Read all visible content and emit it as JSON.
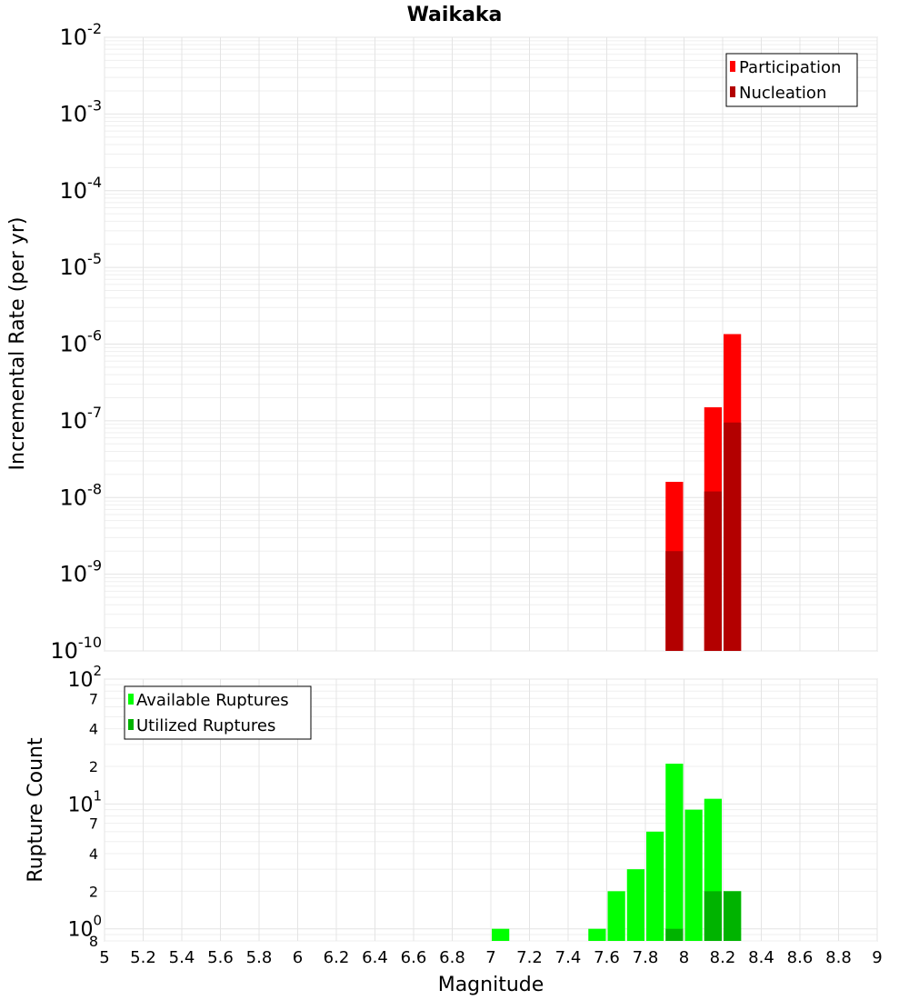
{
  "chart_data": {
    "title": "Waikaka",
    "xlabel": "Magnitude",
    "xlim": [
      5,
      9
    ],
    "x_ticks": [
      "5",
      "5.2",
      "5.4",
      "5.6",
      "5.8",
      "6",
      "6.2",
      "6.4",
      "6.6",
      "6.8",
      "7",
      "7.2",
      "7.4",
      "7.6",
      "7.8",
      "8",
      "8.2",
      "8.4",
      "8.6",
      "8.8",
      "9"
    ],
    "panels": [
      {
        "type": "bar",
        "scale": "log",
        "ylabel": "Incremental Rate (per yr)",
        "ylim": [
          1e-10,
          0.01
        ],
        "y_ticks": [
          {
            "value": 1e-10,
            "base": "10",
            "exp": "-10"
          },
          {
            "value": 1e-09,
            "base": "10",
            "exp": "-9"
          },
          {
            "value": 1e-08,
            "base": "10",
            "exp": "-8"
          },
          {
            "value": 1e-07,
            "base": "10",
            "exp": "-7"
          },
          {
            "value": 1e-06,
            "base": "10",
            "exp": "-6"
          },
          {
            "value": 1e-05,
            "base": "10",
            "exp": "-5"
          },
          {
            "value": 0.0001,
            "base": "10",
            "exp": "-4"
          },
          {
            "value": 0.001,
            "base": "10",
            "exp": "-3"
          },
          {
            "value": 0.01,
            "base": "10",
            "exp": "-2"
          }
        ],
        "minor_tick_labels": [],
        "legend_position": "top-right",
        "series": [
          {
            "name": "Participation",
            "color": "#ff0000",
            "points": [
              {
                "x": 7.95,
                "y": 1.6e-08
              },
              {
                "x": 8.15,
                "y": 1.5e-07
              },
              {
                "x": 8.25,
                "y": 1.35e-06
              }
            ]
          },
          {
            "name": "Nucleation",
            "color": "#b30000",
            "points": [
              {
                "x": 7.95,
                "y": 2e-09
              },
              {
                "x": 8.15,
                "y": 1.2e-08
              },
              {
                "x": 8.25,
                "y": 9.5e-08
              }
            ]
          }
        ]
      },
      {
        "type": "bar",
        "scale": "log",
        "ylabel": "Rupture Count",
        "ylim": [
          0.8,
          100
        ],
        "y_ticks": [
          {
            "value": 1,
            "base": "10",
            "exp": "0"
          },
          {
            "value": 10,
            "base": "10",
            "exp": "1"
          },
          {
            "value": 100,
            "base": "10",
            "exp": "2"
          }
        ],
        "minor_tick_labels": [
          {
            "value": 0.8,
            "label": "8"
          },
          {
            "value": 2,
            "label": "2"
          },
          {
            "value": 4,
            "label": "4"
          },
          {
            "value": 7,
            "label": "7"
          },
          {
            "value": 20,
            "label": "2"
          },
          {
            "value": 40,
            "label": "4"
          },
          {
            "value": 70,
            "label": "7"
          }
        ],
        "legend_position": "top-left",
        "series": [
          {
            "name": "Available Ruptures",
            "color": "#00ff00",
            "points": [
              {
                "x": 7.05,
                "y": 1
              },
              {
                "x": 7.55,
                "y": 1
              },
              {
                "x": 7.65,
                "y": 2
              },
              {
                "x": 7.75,
                "y": 3
              },
              {
                "x": 7.85,
                "y": 6
              },
              {
                "x": 7.95,
                "y": 21
              },
              {
                "x": 8.05,
                "y": 9
              },
              {
                "x": 8.15,
                "y": 11
              },
              {
                "x": 8.25,
                "y": 2
              }
            ]
          },
          {
            "name": "Utilized Ruptures",
            "color": "#00b300",
            "points": [
              {
                "x": 7.95,
                "y": 1
              },
              {
                "x": 8.15,
                "y": 2
              },
              {
                "x": 8.25,
                "y": 2
              }
            ]
          }
        ]
      }
    ]
  }
}
